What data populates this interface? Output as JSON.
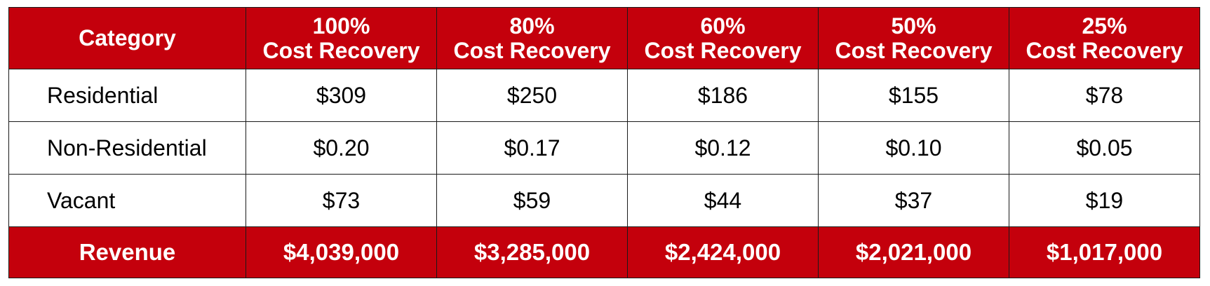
{
  "table": {
    "header_category": "Category",
    "columns": [
      {
        "pct": "100%",
        "label": "Cost Recovery"
      },
      {
        "pct": "80%",
        "label": "Cost Recovery"
      },
      {
        "pct": "60%",
        "label": "Cost Recovery"
      },
      {
        "pct": "50%",
        "label": "Cost Recovery"
      },
      {
        "pct": "25%",
        "label": "Cost Recovery"
      }
    ],
    "rows": [
      {
        "category": "Residential",
        "values": [
          "$309",
          "$250",
          "$186",
          "$155",
          "$78"
        ]
      },
      {
        "category": "Non-Residential",
        "values": [
          "$0.20",
          "$0.17",
          "$0.12",
          "$0.10",
          "$0.05"
        ]
      },
      {
        "category": "Vacant",
        "values": [
          "$73",
          "$59",
          "$44",
          "$37",
          "$19"
        ]
      }
    ],
    "footer": {
      "label": "Revenue",
      "values": [
        "$4,039,000",
        "$3,285,000",
        "$2,424,000",
        "$2,021,000",
        "$1,017,000"
      ]
    }
  },
  "colors": {
    "header_bg": "#c4000c",
    "header_text": "#ffffff",
    "body_bg": "#ffffff",
    "border": "#1a1a1a"
  }
}
